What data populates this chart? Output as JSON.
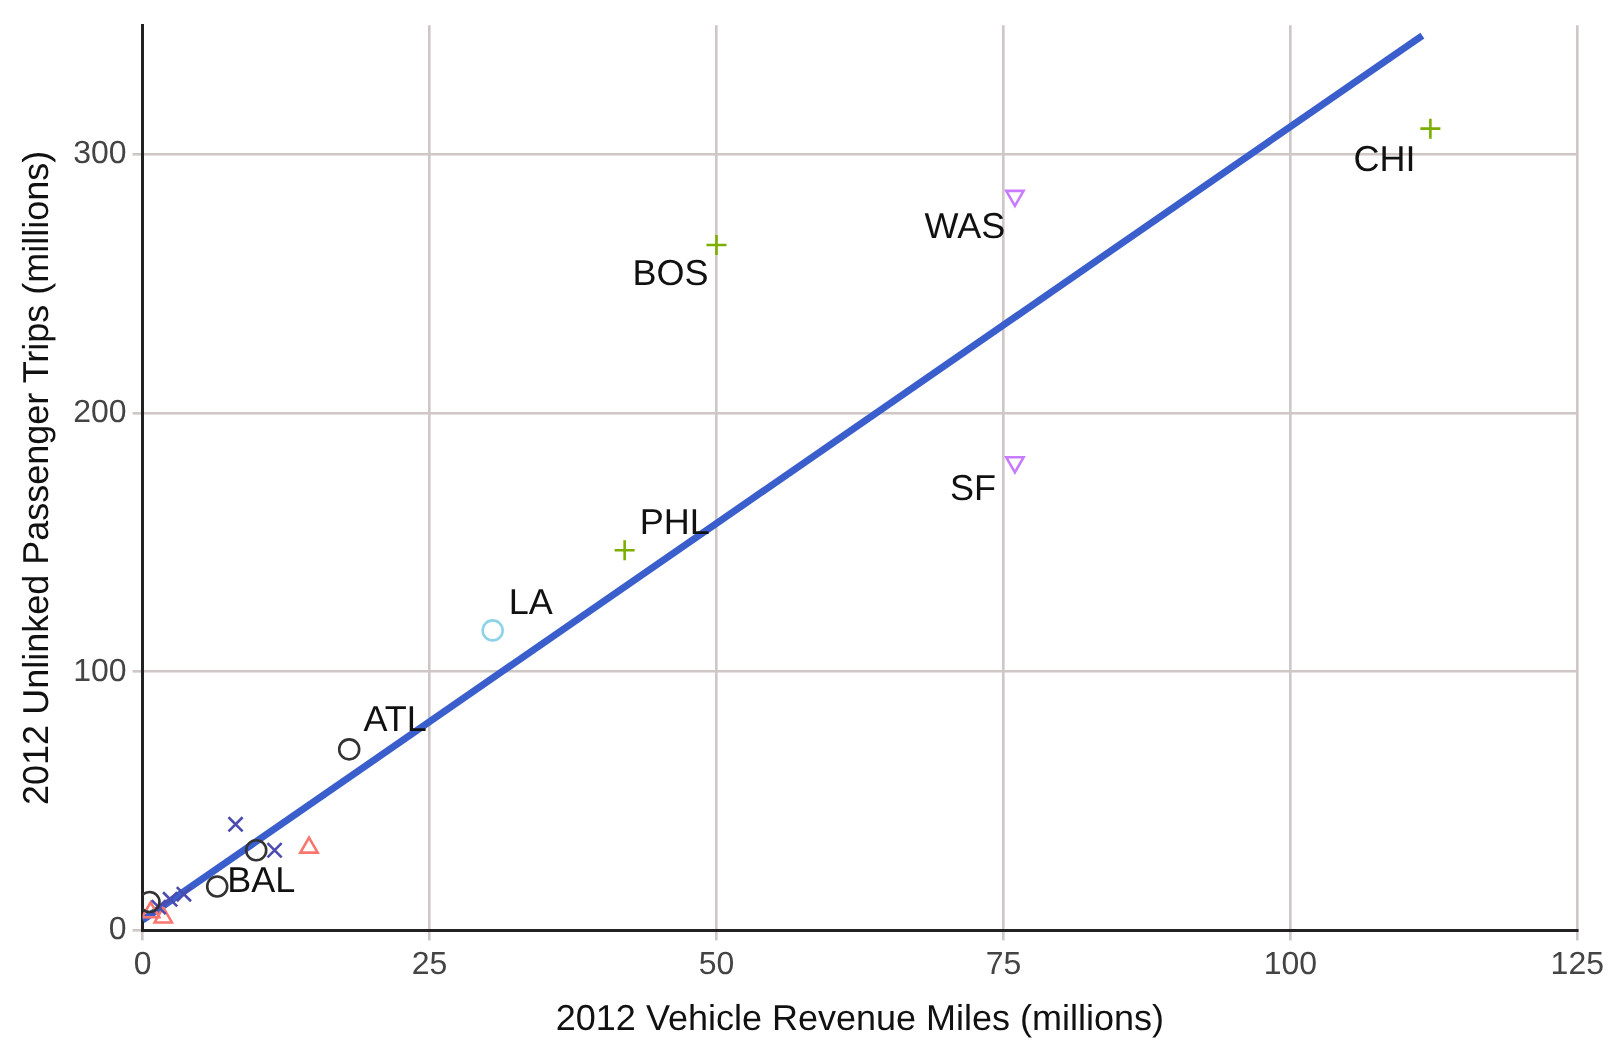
{
  "chart_data": {
    "type": "scatter",
    "xlabel": "2012 Vehicle Revenue Miles (millions)",
    "ylabel": "2012 Unlinked Passenger Trips (millions)",
    "xlim": [
      0,
      125
    ],
    "ylim": [
      0,
      350
    ],
    "xticks": [
      0,
      25,
      50,
      75,
      100,
      125
    ],
    "yticks": [
      0,
      100,
      200,
      300
    ],
    "grid": true,
    "legend": false,
    "series": [
      {
        "color": "#7cae00",
        "marker": "cross",
        "x": [
          112.2,
          50,
          42
        ],
        "values": [
          310,
          265,
          147
        ]
      },
      {
        "color": "#c77cff",
        "marker": "triangle-down",
        "x": [
          76,
          76
        ],
        "values": [
          284,
          181
        ]
      },
      {
        "color": "#8fd3e8",
        "marker": "circle",
        "x": [
          30.5
        ],
        "values": [
          116
        ]
      },
      {
        "color": "#333333",
        "marker": "circle",
        "x": [
          18,
          9.9,
          6.5,
          0.6
        ],
        "values": [
          70,
          31,
          17,
          11
        ]
      },
      {
        "color": "#4b4bb0",
        "marker": "x",
        "x": [
          8.1,
          11.5,
          3.6,
          1.4,
          2.4
        ],
        "values": [
          41,
          31,
          14,
          9,
          12
        ]
      },
      {
        "color": "#f8766d",
        "marker": "triangle",
        "x": [
          14.5,
          0.7,
          1.8
        ],
        "values": [
          32,
          7,
          5
        ]
      },
      {
        "type": "line",
        "color": "#3a5fcd",
        "marker": "none",
        "x": [
          0,
          111.5
        ],
        "values": [
          4,
          346
        ]
      }
    ],
    "annotations": [
      {
        "text": "CHI",
        "x": 112.2,
        "y": 310
      },
      {
        "text": "WAS",
        "x": 76,
        "y": 284
      },
      {
        "text": "BOS",
        "x": 50,
        "y": 265
      },
      {
        "text": "SF",
        "x": 76,
        "y": 181
      },
      {
        "text": "PHL",
        "x": 42,
        "y": 147
      },
      {
        "text": "LA",
        "x": 30.5,
        "y": 116
      },
      {
        "text": "ATL",
        "x": 18,
        "y": 70
      },
      {
        "text": "BAL",
        "x": 6.5,
        "y": 17
      }
    ]
  }
}
